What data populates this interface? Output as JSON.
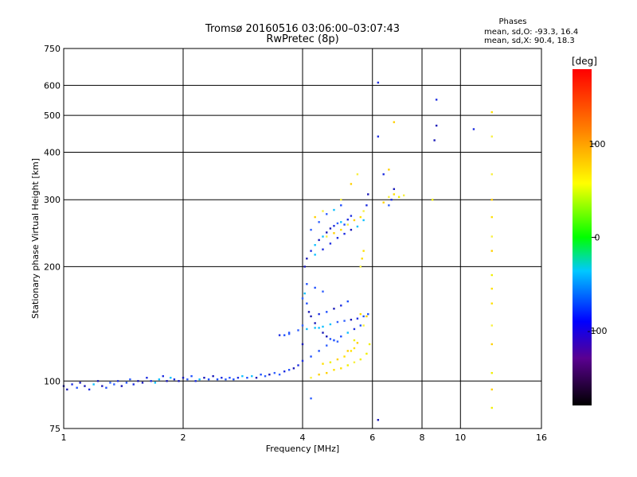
{
  "chart_data": {
    "type": "scatter",
    "title": "Tromsø 20160516 03:06:00–03:07:43",
    "subtitle": "RwPretec (8p)",
    "xlabel": "Frequency [MHz]",
    "ylabel": "Stationary phase Virtual Height [km]",
    "x_scale": "log",
    "y_scale": "log",
    "xlim": [
      1,
      16
    ],
    "ylim": [
      75,
      750
    ],
    "x_ticks": [
      1,
      2,
      4,
      6,
      8,
      10,
      16
    ],
    "y_ticks": [
      75,
      100,
      200,
      300,
      400,
      500,
      600,
      750
    ],
    "grid": true,
    "stats": {
      "header": "Phases",
      "o_line": "mean, sd,O: -93.3, 16.4",
      "x_line": "mean, sd,X:  90.4, 18.3"
    },
    "colorbar": {
      "label": "[deg]",
      "range": [
        -180,
        180
      ],
      "ticks": [
        100,
        0,
        -100
      ]
    },
    "series": [
      {
        "name": "O",
        "phase_deg": -93.3,
        "points": [
          [
            1.0,
            97
          ],
          [
            1.02,
            95
          ],
          [
            1.05,
            98
          ],
          [
            1.08,
            96
          ],
          [
            1.1,
            99
          ],
          [
            1.13,
            97
          ],
          [
            1.16,
            95
          ],
          [
            1.19,
            98
          ],
          [
            1.22,
            100
          ],
          [
            1.25,
            97
          ],
          [
            1.28,
            96
          ],
          [
            1.31,
            99
          ],
          [
            1.34,
            98
          ],
          [
            1.37,
            100
          ],
          [
            1.4,
            97
          ],
          [
            1.44,
            99
          ],
          [
            1.47,
            101
          ],
          [
            1.5,
            98
          ],
          [
            1.54,
            100
          ],
          [
            1.58,
            99
          ],
          [
            1.62,
            102
          ],
          [
            1.66,
            100
          ],
          [
            1.7,
            99
          ],
          [
            1.74,
            101
          ],
          [
            1.78,
            103
          ],
          [
            1.82,
            100
          ],
          [
            1.86,
            102
          ],
          [
            1.9,
            101
          ],
          [
            1.95,
            100
          ],
          [
            2.0,
            102
          ],
          [
            2.05,
            101
          ],
          [
            2.1,
            103
          ],
          [
            2.15,
            100
          ],
          [
            2.2,
            101
          ],
          [
            2.26,
            102
          ],
          [
            2.32,
            101
          ],
          [
            2.38,
            103
          ],
          [
            2.44,
            101
          ],
          [
            2.5,
            102
          ],
          [
            2.56,
            101
          ],
          [
            2.62,
            102
          ],
          [
            2.68,
            101
          ],
          [
            2.75,
            102
          ],
          [
            2.82,
            103
          ],
          [
            2.9,
            102
          ],
          [
            2.98,
            103
          ],
          [
            3.06,
            102
          ],
          [
            3.14,
            104
          ],
          [
            3.22,
            103
          ],
          [
            3.3,
            104
          ],
          [
            3.4,
            105
          ],
          [
            3.5,
            104
          ],
          [
            3.6,
            106
          ],
          [
            3.7,
            107
          ],
          [
            3.8,
            108
          ],
          [
            3.9,
            110
          ],
          [
            4.0,
            113
          ],
          [
            4.0,
            125
          ],
          [
            4.0,
            140
          ],
          [
            4.0,
            165
          ],
          [
            4.05,
            170
          ],
          [
            4.1,
            160
          ],
          [
            4.15,
            152
          ],
          [
            4.2,
            148
          ],
          [
            4.3,
            142
          ],
          [
            4.4,
            138
          ],
          [
            4.5,
            134
          ],
          [
            4.6,
            131
          ],
          [
            4.7,
            129
          ],
          [
            4.8,
            128
          ],
          [
            4.9,
            127
          ],
          [
            3.5,
            132
          ],
          [
            3.7,
            134
          ],
          [
            3.9,
            136
          ],
          [
            4.1,
            137
          ],
          [
            4.3,
            138
          ],
          [
            4.5,
            139
          ],
          [
            4.7,
            141
          ],
          [
            4.9,
            143
          ],
          [
            5.1,
            144
          ],
          [
            5.3,
            145
          ],
          [
            5.5,
            146
          ],
          [
            5.7,
            148
          ],
          [
            5.85,
            150
          ],
          [
            4.2,
            116
          ],
          [
            4.4,
            120
          ],
          [
            4.6,
            124
          ],
          [
            4.8,
            128
          ],
          [
            5.0,
            131
          ],
          [
            5.2,
            134
          ],
          [
            5.4,
            137
          ],
          [
            5.6,
            140
          ],
          [
            4.05,
            200
          ],
          [
            4.1,
            210
          ],
          [
            4.2,
            220
          ],
          [
            4.3,
            228
          ],
          [
            4.4,
            235
          ],
          [
            4.5,
            240
          ],
          [
            4.6,
            246
          ],
          [
            4.7,
            252
          ],
          [
            4.8,
            256
          ],
          [
            4.9,
            260
          ],
          [
            5.0,
            262
          ],
          [
            5.1,
            258
          ],
          [
            5.2,
            266
          ],
          [
            5.3,
            272
          ],
          [
            4.2,
            250
          ],
          [
            4.4,
            262
          ],
          [
            4.6,
            275
          ],
          [
            4.8,
            282
          ],
          [
            5.0,
            290
          ],
          [
            4.3,
            215
          ],
          [
            4.5,
            222
          ],
          [
            4.7,
            230
          ],
          [
            4.9,
            238
          ],
          [
            5.1,
            244
          ],
          [
            5.3,
            250
          ],
          [
            5.5,
            255
          ],
          [
            5.7,
            265
          ],
          [
            5.8,
            290
          ],
          [
            5.85,
            310
          ],
          [
            4.4,
            150
          ],
          [
            4.6,
            152
          ],
          [
            4.8,
            155
          ],
          [
            5.0,
            158
          ],
          [
            5.2,
            162
          ],
          [
            4.1,
            180
          ],
          [
            4.3,
            176
          ],
          [
            4.5,
            172
          ],
          [
            6.2,
            610
          ],
          [
            6.2,
            440
          ],
          [
            6.4,
            350
          ],
          [
            6.6,
            290
          ],
          [
            6.7,
            300
          ],
          [
            6.8,
            320
          ],
          [
            8.7,
            550
          ],
          [
            8.7,
            470
          ],
          [
            8.6,
            430
          ],
          [
            10.8,
            460
          ],
          [
            4.2,
            90
          ],
          [
            6.2,
            79
          ],
          [
            3.7,
            133
          ],
          [
            3.6,
            132
          ]
        ]
      },
      {
        "name": "X",
        "phase_deg": 90.4,
        "points": [
          [
            4.2,
            102
          ],
          [
            4.4,
            104
          ],
          [
            4.6,
            105
          ],
          [
            4.8,
            107
          ],
          [
            5.0,
            108
          ],
          [
            5.2,
            110
          ],
          [
            5.4,
            112
          ],
          [
            5.6,
            114
          ],
          [
            5.8,
            118
          ],
          [
            5.9,
            125
          ],
          [
            4.5,
            111
          ],
          [
            4.7,
            112
          ],
          [
            4.9,
            114
          ],
          [
            5.1,
            116
          ],
          [
            5.3,
            120
          ],
          [
            5.5,
            126
          ],
          [
            5.7,
            140
          ],
          [
            5.8,
            148
          ],
          [
            5.6,
            150
          ],
          [
            5.4,
            128
          ],
          [
            4.6,
            240
          ],
          [
            4.8,
            245
          ],
          [
            5.0,
            250
          ],
          [
            5.2,
            258
          ],
          [
            5.4,
            265
          ],
          [
            5.6,
            270
          ],
          [
            5.7,
            280
          ],
          [
            5.6,
            200
          ],
          [
            5.65,
            210
          ],
          [
            5.7,
            220
          ],
          [
            4.3,
            270
          ],
          [
            4.5,
            280
          ],
          [
            5.0,
            300
          ],
          [
            5.3,
            330
          ],
          [
            5.5,
            350
          ],
          [
            6.4,
            295
          ],
          [
            6.6,
            305
          ],
          [
            6.8,
            310
          ],
          [
            7.0,
            305
          ],
          [
            7.2,
            308
          ],
          [
            6.8,
            480
          ],
          [
            6.6,
            360
          ],
          [
            12.0,
            510
          ],
          [
            12.0,
            440
          ],
          [
            12.0,
            350
          ],
          [
            12.0,
            300
          ],
          [
            12.0,
            270
          ],
          [
            12.0,
            240
          ],
          [
            12.0,
            220
          ],
          [
            12.0,
            190
          ],
          [
            12.0,
            175
          ],
          [
            12.0,
            160
          ],
          [
            12.0,
            140
          ],
          [
            12.0,
            125
          ],
          [
            12.0,
            105
          ],
          [
            12.0,
            95
          ],
          [
            12.0,
            85
          ],
          [
            8.5,
            300
          ],
          [
            5.2,
            120
          ],
          [
            5.4,
            122
          ]
        ]
      }
    ]
  }
}
